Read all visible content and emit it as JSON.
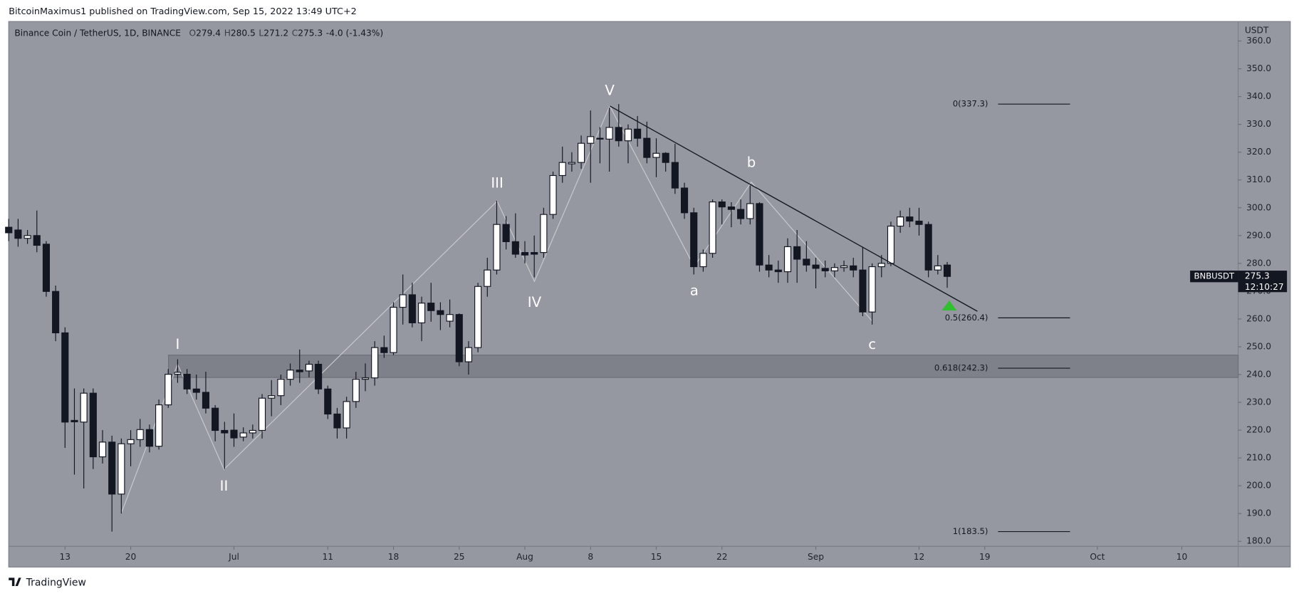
{
  "header": {
    "published": "BitcoinMaximus1 published on TradingView.com, Sep 15, 2022 13:49 UTC+2",
    "footer": "TradingView"
  },
  "chart_data": {
    "type": "candlestick",
    "title": "Binance Coin / TetherUS, 1D, BINANCE",
    "ohlc_legend": [
      {
        "key": "O",
        "value": "279.4"
      },
      {
        "key": "H",
        "value": "280.5"
      },
      {
        "key": "L",
        "value": "271.2"
      },
      {
        "key": "C",
        "value": "275.3"
      }
    ],
    "change": "-4.0 (-1.43%)",
    "y_axis_unit": "USDT",
    "symbol_badge": "BNBUSDT",
    "last_price_label": "275.3",
    "countdown": "12:10:27",
    "up_color": "#ffffff",
    "down_color": "#131722",
    "grid": false,
    "xlim": [
      "2022-06-07",
      "2022-10-16"
    ],
    "ylim": [
      178.2,
      367.0
    ],
    "yticks": [
      {
        "value": 180,
        "label": "180.0"
      },
      {
        "value": 190,
        "label": "190.0"
      },
      {
        "value": 200,
        "label": "200.0"
      },
      {
        "value": 210,
        "label": "210.0"
      },
      {
        "value": 220,
        "label": "220.0"
      },
      {
        "value": 230,
        "label": "230.0"
      },
      {
        "value": 240,
        "label": "240.0"
      },
      {
        "value": 250,
        "label": "250.0"
      },
      {
        "value": 260,
        "label": "260.0"
      },
      {
        "value": 270,
        "label": "270.0"
      },
      {
        "value": 280,
        "label": "280.0"
      },
      {
        "value": 290,
        "label": "290.0"
      },
      {
        "value": 300,
        "label": "300.0"
      },
      {
        "value": 310,
        "label": "310.0"
      },
      {
        "value": 320,
        "label": "320.0"
      },
      {
        "value": 330,
        "label": "330.0"
      },
      {
        "value": 340,
        "label": "340.0"
      },
      {
        "value": 350,
        "label": "350.0"
      },
      {
        "value": 360,
        "label": "360.0"
      }
    ],
    "xticks": [
      {
        "value": "2022-06-13",
        "label": "13"
      },
      {
        "value": "2022-06-20",
        "label": "20"
      },
      {
        "value": "2022-07-01",
        "label": "Jul"
      },
      {
        "value": "2022-07-11",
        "label": "11"
      },
      {
        "value": "2022-07-18",
        "label": "18"
      },
      {
        "value": "2022-07-25",
        "label": "25"
      },
      {
        "value": "2022-08-01",
        "label": "Aug"
      },
      {
        "value": "2022-08-08",
        "label": "8"
      },
      {
        "value": "2022-08-15",
        "label": "15"
      },
      {
        "value": "2022-08-22",
        "label": "22"
      },
      {
        "value": "2022-09-01",
        "label": "Sep"
      },
      {
        "value": "2022-09-12",
        "label": "12"
      },
      {
        "value": "2022-09-19",
        "label": "19"
      },
      {
        "value": "2022-10-01",
        "label": "Oct"
      },
      {
        "value": "2022-10-10",
        "label": "10"
      }
    ],
    "x": [
      "2022-06-07",
      "2022-06-08",
      "2022-06-09",
      "2022-06-10",
      "2022-06-11",
      "2022-06-12",
      "2022-06-13",
      "2022-06-14",
      "2022-06-15",
      "2022-06-16",
      "2022-06-17",
      "2022-06-18",
      "2022-06-19",
      "2022-06-20",
      "2022-06-21",
      "2022-06-22",
      "2022-06-23",
      "2022-06-24",
      "2022-06-25",
      "2022-06-26",
      "2022-06-27",
      "2022-06-28",
      "2022-06-29",
      "2022-06-30",
      "2022-07-01",
      "2022-07-02",
      "2022-07-03",
      "2022-07-04",
      "2022-07-05",
      "2022-07-06",
      "2022-07-07",
      "2022-07-08",
      "2022-07-09",
      "2022-07-10",
      "2022-07-11",
      "2022-07-12",
      "2022-07-13",
      "2022-07-14",
      "2022-07-15",
      "2022-07-16",
      "2022-07-17",
      "2022-07-18",
      "2022-07-19",
      "2022-07-20",
      "2022-07-21",
      "2022-07-22",
      "2022-07-23",
      "2022-07-24",
      "2022-07-25",
      "2022-07-26",
      "2022-07-27",
      "2022-07-28",
      "2022-07-29",
      "2022-07-30",
      "2022-07-31",
      "2022-08-01",
      "2022-08-02",
      "2022-08-03",
      "2022-08-04",
      "2022-08-05",
      "2022-08-06",
      "2022-08-07",
      "2022-08-08",
      "2022-08-09",
      "2022-08-10",
      "2022-08-11",
      "2022-08-12",
      "2022-08-13",
      "2022-08-14",
      "2022-08-15",
      "2022-08-16",
      "2022-08-17",
      "2022-08-18",
      "2022-08-19",
      "2022-08-20",
      "2022-08-21",
      "2022-08-22",
      "2022-08-23",
      "2022-08-24",
      "2022-08-25",
      "2022-08-26",
      "2022-08-27",
      "2022-08-28",
      "2022-08-29",
      "2022-08-30",
      "2022-08-31",
      "2022-09-01",
      "2022-09-02",
      "2022-09-03",
      "2022-09-04",
      "2022-09-05",
      "2022-09-06",
      "2022-09-07",
      "2022-09-08",
      "2022-09-09",
      "2022-09-10",
      "2022-09-11",
      "2022-09-12",
      "2022-09-13",
      "2022-09-14",
      "2022-09-15"
    ],
    "open": [
      293,
      292,
      289,
      290,
      286.9,
      269.9,
      255,
      223.5,
      222.9,
      233.3,
      210.4,
      215.7,
      197,
      215.1,
      216.6,
      220.2,
      214.2,
      229.1,
      240.1,
      240.1,
      234.8,
      233.6,
      227.9,
      219.9,
      220,
      217.5,
      219,
      219.9,
      231.5,
      232.4,
      238.3,
      241.6,
      241.3,
      243.7,
      234.8,
      225.8,
      220.8,
      230.3,
      238.3,
      238.8,
      249.7,
      247.9,
      264.2,
      268.7,
      258.6,
      265.7,
      263,
      259.2,
      261.6,
      244.6,
      249.7,
      271.7,
      277.6,
      294,
      287.8,
      283.9,
      283.9,
      283.9,
      297.6,
      311.6,
      315.8,
      316.3,
      323.2,
      325,
      324.7,
      328.9,
      324.1,
      328.3,
      325,
      318.1,
      319.6,
      316.3,
      307.1,
      298.2,
      278.8,
      283.6,
      302.1,
      300.3,
      299.4,
      296.1,
      301.5,
      279.4,
      277.6,
      277,
      286,
      281.5,
      279.4,
      278.2,
      277.3,
      278.5,
      279.1,
      277.6,
      262.5,
      278.8,
      280,
      293.4,
      296.7,
      295.2,
      294,
      277.6,
      279.4
    ],
    "high": [
      296,
      296,
      292,
      299,
      288,
      272,
      257,
      235,
      235,
      235,
      220,
      218,
      217,
      220,
      224,
      222,
      231,
      242,
      245.5,
      242,
      240,
      241,
      229,
      223,
      226,
      221,
      222,
      233,
      238,
      240,
      244,
      249,
      245,
      245,
      236,
      228,
      232,
      241,
      244,
      252,
      254,
      266,
      276,
      273,
      268,
      273,
      266,
      267,
      262,
      252,
      273,
      282,
      302.5,
      297,
      298,
      288,
      290,
      300,
      313,
      322,
      320,
      326,
      335,
      329,
      336,
      337.3,
      330,
      333,
      331,
      325,
      320,
      323,
      309,
      300,
      285,
      303,
      303,
      302,
      303,
      308,
      302,
      283,
      281,
      289,
      292,
      288,
      282,
      281,
      280,
      281,
      282,
      286,
      280,
      283,
      295,
      299,
      300,
      300,
      295,
      283,
      280.5
    ],
    "low": [
      288,
      286,
      287,
      284,
      268,
      252,
      213.6,
      204,
      199,
      206,
      208,
      183.5,
      190,
      207,
      214,
      212,
      213,
      228,
      237,
      233,
      231,
      226,
      216,
      206,
      214,
      216,
      217,
      217,
      225,
      229,
      236,
      237,
      239,
      233,
      224,
      217,
      217,
      228,
      234,
      236,
      246,
      247,
      258,
      257,
      252,
      259,
      256,
      257,
      243,
      240,
      248,
      268,
      276,
      285,
      282,
      280,
      275,
      282,
      296,
      309,
      313,
      314,
      309,
      316,
      313,
      322,
      316,
      322,
      316,
      311,
      313,
      305,
      296,
      276,
      277,
      282,
      294,
      293,
      294,
      294,
      277,
      275,
      273,
      273,
      273,
      277,
      271,
      275,
      275,
      277,
      275,
      261,
      258,
      275,
      279,
      291,
      293,
      290,
      275,
      276,
      271.2
    ],
    "close": [
      291,
      289,
      290,
      286.5,
      269.9,
      255,
      222.9,
      223,
      233.3,
      210.4,
      215.7,
      197,
      215.1,
      216.6,
      220.2,
      214.2,
      229.1,
      240.1,
      240.8,
      234.8,
      233.6,
      227.9,
      219.9,
      219,
      217.2,
      219,
      219.9,
      231.5,
      232.4,
      238.3,
      241.6,
      241,
      243.7,
      234.8,
      225.8,
      220.8,
      230.3,
      238.3,
      238.8,
      249.7,
      247.9,
      264.2,
      268.7,
      258.6,
      265.7,
      263,
      261.6,
      261.6,
      244.6,
      249.7,
      271.7,
      277.6,
      294,
      287.8,
      283.3,
      283,
      283.3,
      297.6,
      311.6,
      316.3,
      316.3,
      323.2,
      325.6,
      324.7,
      328.9,
      324.1,
      328.3,
      325,
      318.1,
      319.6,
      316.3,
      307.1,
      298.2,
      278.8,
      283.6,
      302.1,
      300.3,
      299.4,
      296.1,
      301.5,
      279.4,
      277.6,
      277,
      286,
      281.5,
      279.4,
      278.2,
      277.3,
      278.5,
      279.1,
      277.6,
      262.5,
      278.8,
      280,
      293.4,
      296.7,
      295.2,
      294,
      277.6,
      279.1,
      275.3
    ],
    "wave_labels": [
      "I",
      "II",
      "III",
      "IV",
      "V",
      "a",
      "b",
      "c"
    ],
    "fib_levels": [
      {
        "label": "0(337.3)",
        "price": 337.3
      },
      {
        "label": "0.5(260.4)",
        "price": 260.4
      },
      {
        "label": "0.618(242.3)",
        "price": 242.3
      },
      {
        "label": "1(183.5)",
        "price": 183.5
      }
    ]
  }
}
